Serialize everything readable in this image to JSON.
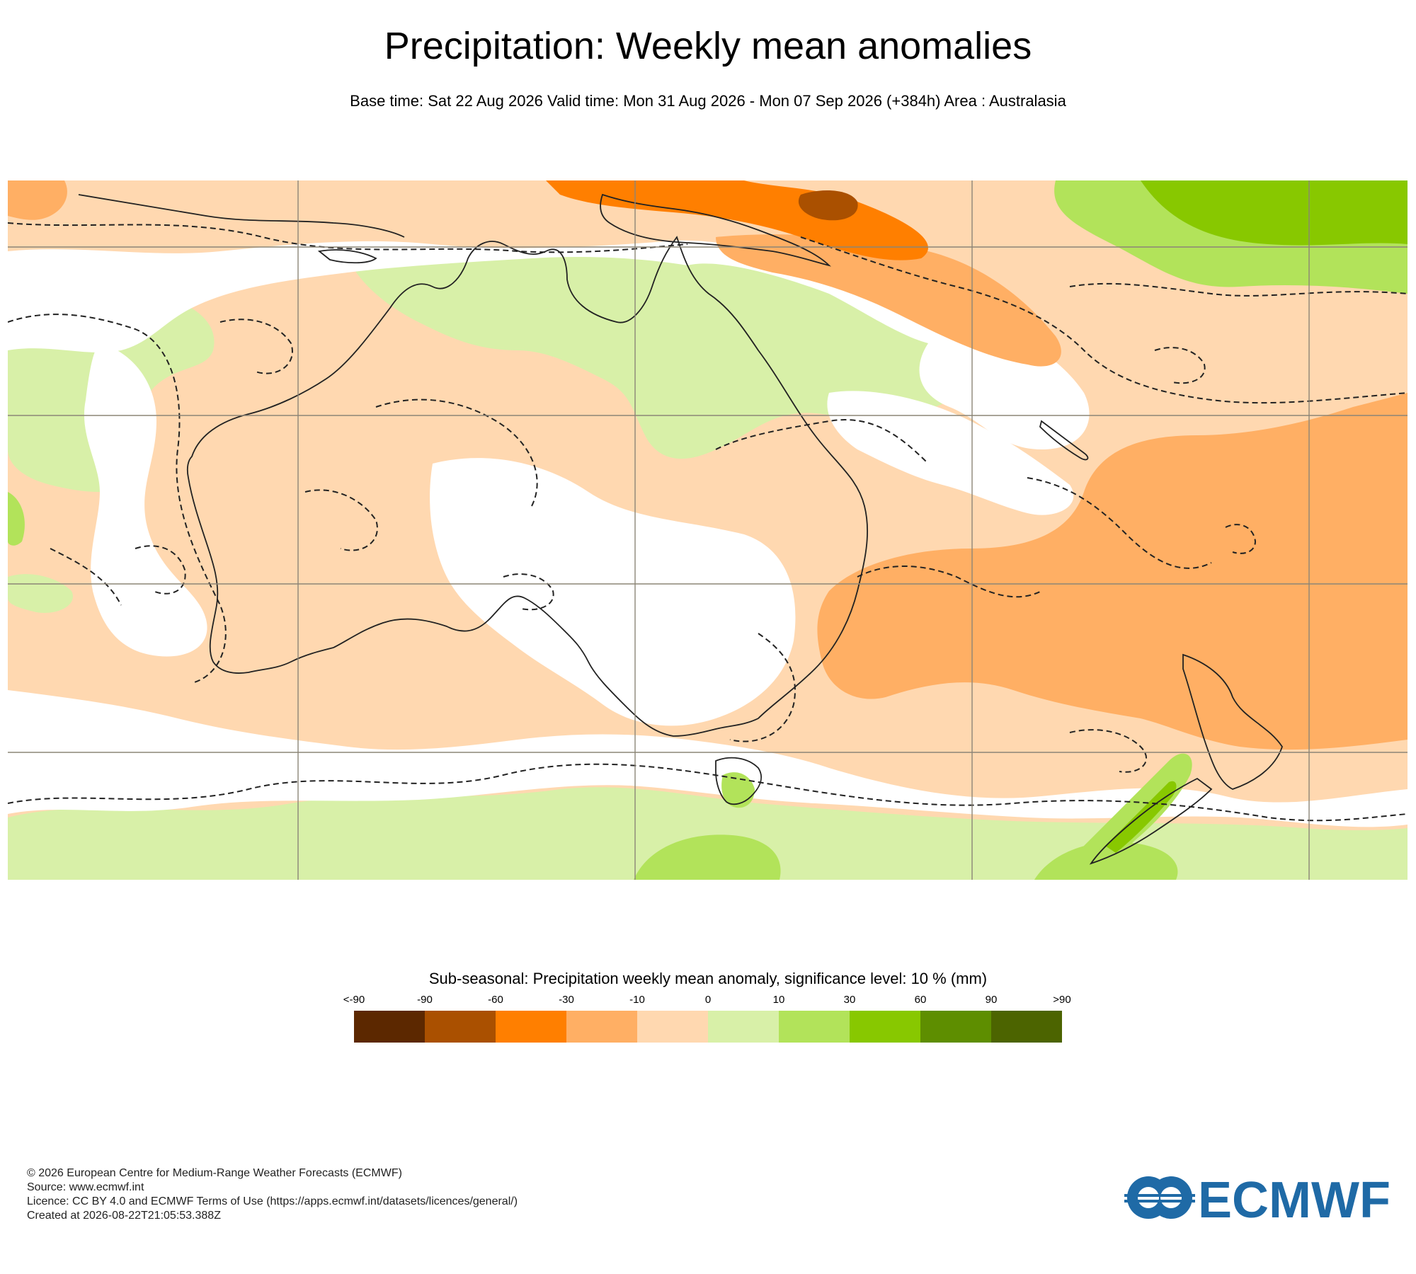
{
  "header": {
    "title": "Precipitation: Weekly mean anomalies",
    "subtitle": "Base time: Sat 22 Aug 2026 Valid time: Mon 31 Aug 2026 - Mon 07 Sep 2026 (+384h) Area : Australasia"
  },
  "legend": {
    "title": "Sub-seasonal: Precipitation weekly mean anomaly, significance level: 10 % (mm)",
    "labels": [
      "<-90",
      "-90",
      "-60",
      "-30",
      "-10",
      "0",
      "10",
      "30",
      "60",
      "90",
      ">90"
    ],
    "colors": [
      "#5c2800",
      "#aa5000",
      "#ff7f00",
      "#ffaf64",
      "#ffd8b0",
      "#d8f0a8",
      "#b2e35a",
      "#88c800",
      "#5e8e00",
      "#4c6400"
    ]
  },
  "map": {
    "region": "Australasia",
    "colors": {
      "dry_strong": "#ff7f00",
      "dry_moderate": "#ffaf64",
      "dry_weak": "#ffd8b0",
      "neutral": "#ffffff",
      "wet_weak": "#d8f0a8",
      "wet_moderate": "#b2e35a",
      "wet_strong": "#88c800",
      "wet_very_strong": "#5e8e00"
    }
  },
  "footer": {
    "copyright": "© 2026 European Centre for Medium-Range Weather Forecasts (ECMWF)",
    "source": "Source: www.ecmwf.int",
    "licence": "Licence: CC BY 4.0 and ECMWF Terms of Use (https://apps.ecmwf.int/datasets/licences/general/)",
    "created": "Created at 2026-08-22T21:05:53.388Z"
  },
  "logo": {
    "text": "ECMWF",
    "color": "#1f6aa6"
  }
}
